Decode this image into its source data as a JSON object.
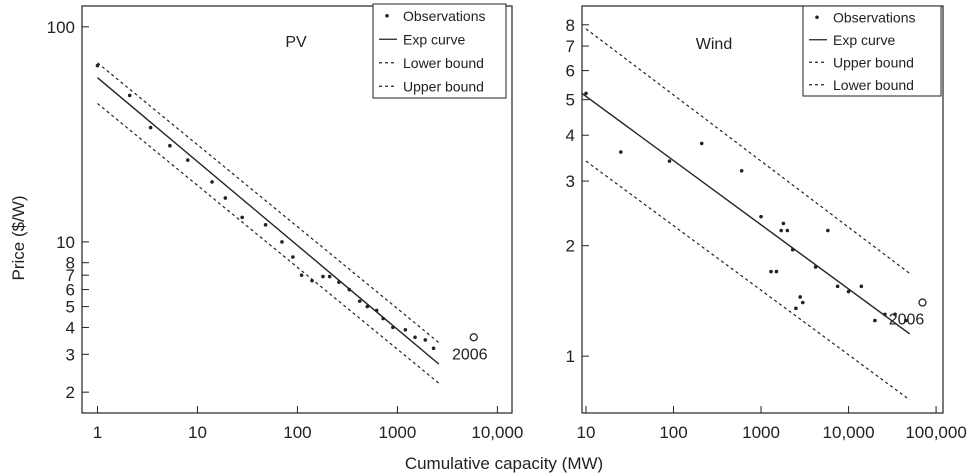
{
  "shared": {
    "xlabel": "Cumulative capacity (MW)",
    "ylabel": "Price ($/W)"
  },
  "chart_data": [
    {
      "type": "scatter",
      "title": "PV",
      "xscale": "log",
      "yscale": "log",
      "xlim": [
        0.7,
        14000
      ],
      "ylim": [
        1.6,
        125
      ],
      "xticks": [
        {
          "v": 1,
          "label": "1"
        },
        {
          "v": 10,
          "label": "10"
        },
        {
          "v": 100,
          "label": "100"
        },
        {
          "v": 1000,
          "label": "1000"
        },
        {
          "v": 10000,
          "label": "10,000"
        }
      ],
      "yticks": [
        {
          "v": 100,
          "label": "100"
        },
        {
          "v": 10,
          "label": "10"
        },
        {
          "v": 8,
          "label": "8"
        },
        {
          "v": 7,
          "label": "7"
        },
        {
          "v": 6,
          "label": "6"
        },
        {
          "v": 5,
          "label": "5"
        },
        {
          "v": 4,
          "label": "4"
        },
        {
          "v": 3,
          "label": "3"
        },
        {
          "v": 2,
          "label": "2"
        }
      ],
      "legend": {
        "placement": "top-right",
        "entries": [
          {
            "label": "Observations",
            "style": "dot"
          },
          {
            "label": "Exp curve",
            "style": "solid"
          },
          {
            "label": "Lower bound",
            "style": "dashed"
          },
          {
            "label": "Upper bound",
            "style": "dashed"
          }
        ]
      },
      "series": [
        {
          "name": "Observations",
          "style": "dot",
          "points": [
            [
              1.0,
              66
            ],
            [
              2.1,
              48
            ],
            [
              3.4,
              34
            ],
            [
              5.3,
              28
            ],
            [
              8.0,
              24
            ],
            [
              14,
              19
            ],
            [
              19,
              16
            ],
            [
              28,
              13
            ],
            [
              48,
              12
            ],
            [
              70,
              10
            ],
            [
              90,
              8.5
            ],
            [
              110,
              7
            ],
            [
              140,
              6.6
            ],
            [
              180,
              6.9
            ],
            [
              210,
              6.9
            ],
            [
              260,
              6.5
            ],
            [
              330,
              6
            ],
            [
              420,
              5.3
            ],
            [
              500,
              5
            ],
            [
              620,
              4.8
            ],
            [
              720,
              4.4
            ],
            [
              900,
              4
            ],
            [
              1200,
              3.9
            ],
            [
              1500,
              3.6
            ],
            [
              1900,
              3.5
            ],
            [
              2300,
              3.2
            ]
          ]
        },
        {
          "name": "Exp curve",
          "style": "solid",
          "points": [
            [
              1,
              58
            ],
            [
              2600,
              2.7
            ]
          ]
        },
        {
          "name": "Lower bound",
          "style": "dashed",
          "points": [
            [
              1,
              44
            ],
            [
              2600,
              2.2
            ]
          ]
        },
        {
          "name": "Upper bound",
          "style": "dashed",
          "points": [
            [
              1,
              68
            ],
            [
              2600,
              3.4
            ]
          ]
        }
      ],
      "annotations": [
        {
          "x": 5800,
          "y": 3.6,
          "label": "2006",
          "marker": "open-circle"
        }
      ]
    },
    {
      "type": "scatter",
      "title": "Wind",
      "xscale": "log",
      "yscale": "log",
      "xlim": [
        9,
        120000
      ],
      "ylim": [
        0.7,
        9
      ],
      "xticks": [
        {
          "v": 10,
          "label": "10"
        },
        {
          "v": 100,
          "label": "100"
        },
        {
          "v": 1000,
          "label": "1000"
        },
        {
          "v": 10000,
          "label": "10,000"
        },
        {
          "v": 100000,
          "label": "100,000"
        }
      ],
      "yticks": [
        {
          "v": 8,
          "label": "8"
        },
        {
          "v": 7,
          "label": "7"
        },
        {
          "v": 6,
          "label": "6"
        },
        {
          "v": 5,
          "label": "5"
        },
        {
          "v": 4,
          "label": "4"
        },
        {
          "v": 3,
          "label": "3"
        },
        {
          "v": 2,
          "label": "2"
        },
        {
          "v": 1,
          "label": "1"
        }
      ],
      "legend": {
        "placement": "top-right",
        "entries": [
          {
            "label": "Observations",
            "style": "dot"
          },
          {
            "label": "Exp curve",
            "style": "solid"
          },
          {
            "label": "Upper bound",
            "style": "dashed"
          },
          {
            "label": "Lower bound",
            "style": "dashed"
          }
        ]
      },
      "series": [
        {
          "name": "Observations",
          "style": "dot",
          "points": [
            [
              10,
              5.2
            ],
            [
              25,
              3.6
            ],
            [
              90,
              3.4
            ],
            [
              210,
              3.8
            ],
            [
              600,
              3.2
            ],
            [
              1000,
              2.4
            ],
            [
              1300,
              1.7
            ],
            [
              1500,
              1.7
            ],
            [
              1700,
              2.2
            ],
            [
              1800,
              2.3
            ],
            [
              2000,
              2.2
            ],
            [
              2300,
              1.95
            ],
            [
              2500,
              1.35
            ],
            [
              2800,
              1.45
            ],
            [
              3000,
              1.4
            ],
            [
              4200,
              1.75
            ],
            [
              5800,
              2.2
            ],
            [
              7500,
              1.55
            ],
            [
              10000,
              1.5
            ],
            [
              14000,
              1.55
            ],
            [
              20000,
              1.25
            ],
            [
              26000,
              1.3
            ],
            [
              34000,
              1.3
            ],
            [
              45000,
              1.25
            ]
          ]
        },
        {
          "name": "Exp curve",
          "style": "solid",
          "points": [
            [
              9,
              5.2
            ],
            [
              50000,
              1.15
            ]
          ]
        },
        {
          "name": "Upper bound",
          "style": "dashed",
          "points": [
            [
              10,
              7.8
            ],
            [
              50000,
              1.68
            ]
          ]
        },
        {
          "name": "Lower bound",
          "style": "dashed",
          "points": [
            [
              10,
              3.4
            ],
            [
              50000,
              0.76
            ]
          ]
        }
      ],
      "annotations": [
        {
          "x": 70000,
          "y": 1.4,
          "label": "2006",
          "marker": "open-circle"
        }
      ]
    }
  ]
}
